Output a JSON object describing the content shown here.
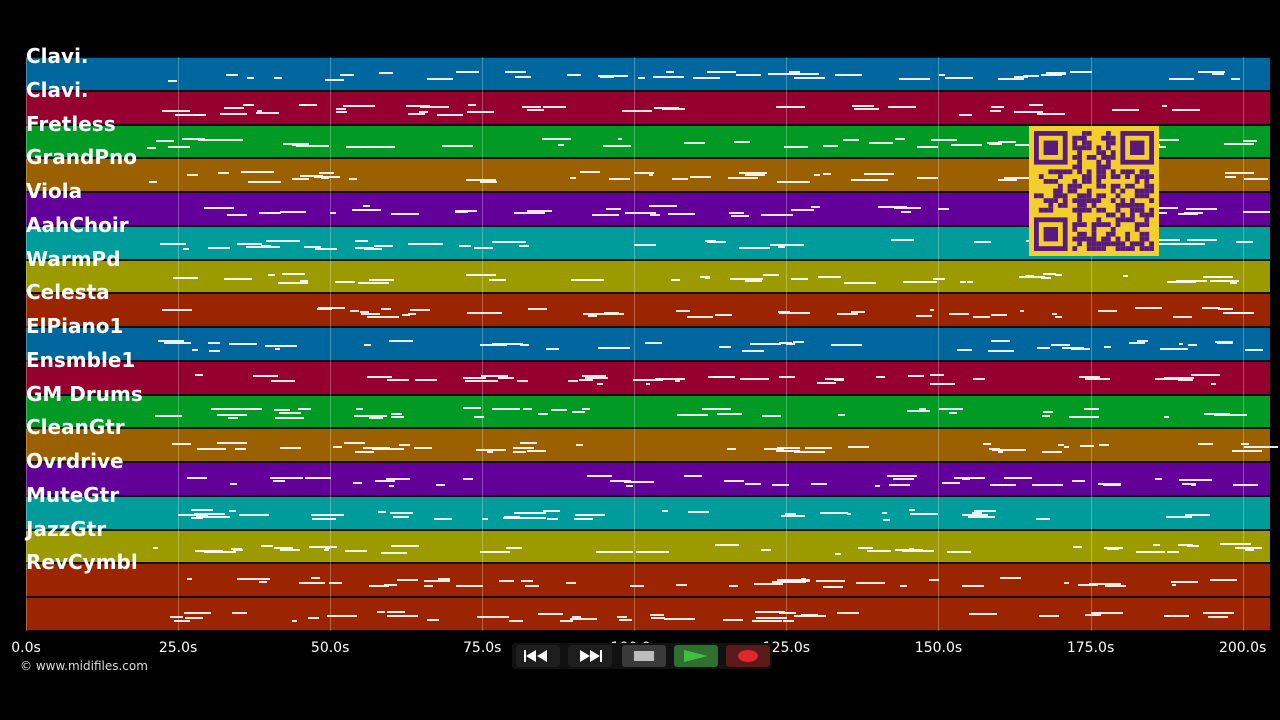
{
  "lanes": [
    {
      "label": "Clavi.",
      "color": "#00679e"
    },
    {
      "label": "Clavi.",
      "color": "#960030"
    },
    {
      "label": "Fretless",
      "color": "#009a25"
    },
    {
      "label": "GrandPno",
      "color": "#9b6000"
    },
    {
      "label": "Viola",
      "color": "#63009a"
    },
    {
      "label": "AahChoir",
      "color": "#009b9b"
    },
    {
      "label": "WarmPd",
      "color": "#9b9b00"
    },
    {
      "label": "Celesta",
      "color": "#9b2500"
    },
    {
      "label": "ElPiano1",
      "color": "#00679e"
    },
    {
      "label": "Ensmble1",
      "color": "#960030"
    },
    {
      "label": "GM Drums",
      "color": "#009a25"
    },
    {
      "label": "CleanGtr",
      "color": "#9b6000"
    },
    {
      "label": "Ovrdrive",
      "color": "#63009a"
    },
    {
      "label": "MuteGtr",
      "color": "#009b9b"
    },
    {
      "label": "JazzGtr",
      "color": "#9b9b00"
    },
    {
      "label": "RevCymbl",
      "color": "#9b2500"
    },
    {
      "label": "",
      "color": "#9b2500"
    }
  ],
  "timeline": {
    "ticks": [
      "0.0s",
      "25.0s",
      "50.0s",
      "75.0s",
      "100.0s",
      "125.0s",
      "150.0s",
      "175.0s",
      "200.0s"
    ],
    "tick_seconds": [
      0,
      25,
      50,
      75,
      100,
      125,
      150,
      175,
      200
    ]
  },
  "copyright": "© www.midifiles.com",
  "transport": {
    "rewind_icon": "rewind-icon",
    "fastforward_icon": "fast-forward-icon",
    "stop_icon": "stop-icon",
    "play_icon": "play-icon",
    "record_icon": "record-icon",
    "play_color": "#3fbf3f",
    "record_color": "#e0262b"
  },
  "qr": {
    "fg": "#5a1a7a",
    "bg": "#f2cf2f"
  }
}
